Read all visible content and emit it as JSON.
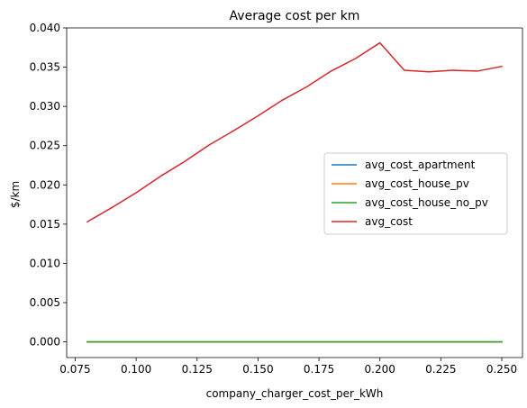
{
  "chart_data": {
    "type": "line",
    "title": "Average cost per km",
    "xlabel": "company_charger_cost_per_kWh",
    "ylabel": "$/km",
    "xlim": [
      0.0715,
      0.2585
    ],
    "ylim": [
      -0.002,
      0.04
    ],
    "xticks": [
      0.075,
      0.1,
      0.125,
      0.15,
      0.175,
      0.2,
      0.225,
      0.25
    ],
    "xtick_labels": [
      "0.075",
      "0.100",
      "0.125",
      "0.150",
      "0.175",
      "0.200",
      "0.225",
      "0.250"
    ],
    "yticks": [
      0.0,
      0.005,
      0.01,
      0.015,
      0.02,
      0.025,
      0.03,
      0.035,
      0.04
    ],
    "ytick_labels": [
      "0.000",
      "0.005",
      "0.010",
      "0.015",
      "0.020",
      "0.025",
      "0.030",
      "0.035",
      "0.040"
    ],
    "grid": false,
    "legend_position": "center-right",
    "x": [
      0.08,
      0.09,
      0.1,
      0.11,
      0.12,
      0.13,
      0.14,
      0.15,
      0.16,
      0.17,
      0.18,
      0.19,
      0.2,
      0.21,
      0.22,
      0.23,
      0.24,
      0.25
    ],
    "series": [
      {
        "name": "avg_cost_apartment",
        "color": "#1f77b4",
        "values": [
          0,
          0,
          0,
          0,
          0,
          0,
          0,
          0,
          0,
          0,
          0,
          0,
          0,
          0,
          0,
          0,
          0,
          0
        ]
      },
      {
        "name": "avg_cost_house_pv",
        "color": "#ff7f0e",
        "values": [
          0,
          0,
          0,
          0,
          0,
          0,
          0,
          0,
          0,
          0,
          0,
          0,
          0,
          0,
          0,
          0,
          0,
          0
        ]
      },
      {
        "name": "avg_cost_house_no_pv",
        "color": "#2ca02c",
        "values": [
          0,
          0,
          0,
          0,
          0,
          0,
          0,
          0,
          0,
          0,
          0,
          0,
          0,
          0,
          0,
          0,
          0,
          0
        ]
      },
      {
        "name": "avg_cost",
        "color": "#d62728",
        "values": [
          0.0153,
          0.0171,
          0.019,
          0.0211,
          0.023,
          0.0251,
          0.0269,
          0.0288,
          0.0308,
          0.0325,
          0.0345,
          0.0361,
          0.0381,
          0.0346,
          0.0344,
          0.0346,
          0.0345,
          0.0351
        ]
      }
    ]
  }
}
